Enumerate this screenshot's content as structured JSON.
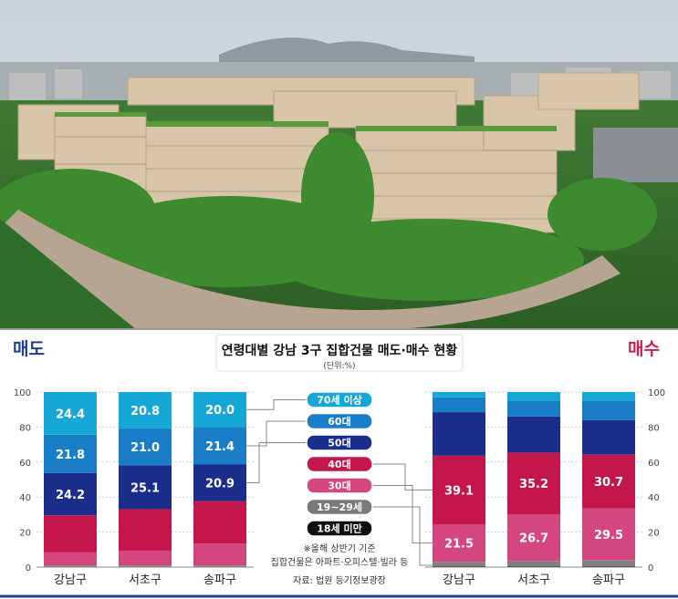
{
  "header": {
    "title": "연령대별 강남 3구 집합건물 매도·매수 현황",
    "unit": "(단위:%)",
    "sell_label": "매도",
    "buy_label": "매수"
  },
  "notes": {
    "line1": "※올해 상반기 기준",
    "line2": "집합건물은 아파트·오피스텔·빌라 등",
    "source": "자료: 법원 등기정보광장"
  },
  "colors": {
    "sell_accent": "#1f3f8f",
    "buy_accent": "#d0204f",
    "age_70_plus": "#15a8d6",
    "age_60s": "#1a7dc8",
    "age_50s": "#1b2d8a",
    "age_40s": "#c5164b",
    "age_30s": "#d4467e",
    "age_19_29": "#808080",
    "age_under_18": "#111111"
  },
  "chart_data": [
    {
      "type": "bar",
      "stacked": true,
      "panel": "매도",
      "categories": [
        "강남구",
        "서초구",
        "송파구"
      ],
      "ylim": [
        0,
        100
      ],
      "yticks": [
        "0",
        "20",
        "40",
        "60",
        "80",
        "100"
      ],
      "series": [
        {
          "name": "18세 미만",
          "values": [
            0.1,
            0.1,
            0.1
          ]
        },
        {
          "name": "19~29세",
          "values": [
            0.8,
            0.8,
            0.8
          ]
        },
        {
          "name": "30대",
          "values": [
            7.5,
            8.5,
            12.5
          ]
        },
        {
          "name": "40대",
          "values": [
            21.2,
            23.7,
            24.3
          ]
        },
        {
          "name": "50대",
          "values": [
            24.2,
            25.1,
            20.9
          ]
        },
        {
          "name": "60대",
          "values": [
            21.8,
            21.0,
            21.4
          ]
        },
        {
          "name": "70세 이상",
          "values": [
            24.4,
            20.8,
            20.0
          ]
        }
      ],
      "labels": {
        "50대": [
          "24.2",
          "25.1",
          "20.9"
        ],
        "60대": [
          "21.8",
          "21.0",
          "21.4"
        ],
        "70세 이상": [
          "24.4",
          "20.8",
          "20.0"
        ]
      }
    },
    {
      "type": "bar",
      "stacked": true,
      "panel": "매수",
      "categories": [
        "강남구",
        "서초구",
        "송파구"
      ],
      "ylim": [
        0,
        100
      ],
      "yticks": [
        "0",
        "20",
        "40",
        "60",
        "80",
        "100"
      ],
      "series": [
        {
          "name": "18세 미만",
          "values": [
            0.5,
            0.5,
            0.5
          ]
        },
        {
          "name": "19~29세",
          "values": [
            2.5,
            3.0,
            3.5
          ]
        },
        {
          "name": "30대",
          "values": [
            21.5,
            26.7,
            29.5
          ]
        },
        {
          "name": "40대",
          "values": [
            39.1,
            35.2,
            30.7
          ]
        },
        {
          "name": "50대",
          "values": [
            24.9,
            20.6,
            19.8
          ]
        },
        {
          "name": "60대",
          "values": [
            8.5,
            9.0,
            11.0
          ]
        },
        {
          "name": "70세 이상",
          "values": [
            3.0,
            5.0,
            5.0
          ]
        }
      ],
      "labels": {
        "30대": [
          "21.5",
          "26.7",
          "29.5"
        ],
        "40대": [
          "39.1",
          "35.2",
          "30.7"
        ]
      }
    }
  ],
  "legend": [
    {
      "name": "70세 이상",
      "color": "#15a8d6",
      "text": "#ffffff"
    },
    {
      "name": "60대",
      "color": "#1a7dc8",
      "text": "#ffffff"
    },
    {
      "name": "50대",
      "color": "#1b2d8a",
      "text": "#ffffff"
    },
    {
      "name": "40대",
      "color": "#c5164b",
      "text": "#ffffff"
    },
    {
      "name": "30대",
      "color": "#d4467e",
      "text": "#ffffff"
    },
    {
      "name": "19~29세",
      "color": "#7a7a7a",
      "text": "#ffffff"
    },
    {
      "name": "18세 미만",
      "color": "#111111",
      "text": "#ffffff"
    }
  ]
}
